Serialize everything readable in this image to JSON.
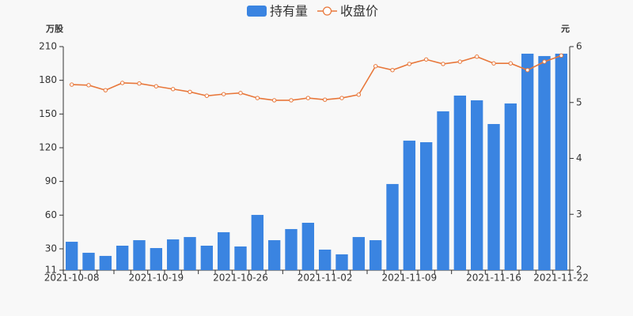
{
  "chart_data": {
    "type": "bar-line",
    "y_unit": "万股",
    "y2_unit": "元",
    "categories": [
      "2021-10-08",
      null,
      null,
      null,
      null,
      "2021-10-19",
      null,
      null,
      null,
      null,
      "2021-10-26",
      null,
      null,
      null,
      null,
      "2021-11-02",
      null,
      null,
      null,
      null,
      "2021-11-09",
      null,
      null,
      null,
      null,
      "2021-11-16",
      null,
      null,
      null,
      "2021-11-22"
    ],
    "series": [
      {
        "name": "持有量",
        "type": "bar",
        "color": "#3a84e1",
        "values": [
          36.3,
          26.5,
          23.7,
          32.8,
          37.7,
          30.7,
          38.4,
          40.5,
          32.8,
          44.8,
          32.1,
          60.2,
          37.7,
          47.6,
          53.2,
          29.3,
          25.1,
          40.5,
          37.7,
          87.7,
          126.3,
          124.9,
          152.4,
          166.4,
          162.2,
          141.1,
          159.4,
          203.7,
          201.6,
          203.7
        ]
      },
      {
        "name": "收盘价",
        "type": "line",
        "axis": "y2",
        "color": "#e8773a",
        "values": [
          5.32,
          5.31,
          5.22,
          5.35,
          5.34,
          5.29,
          5.24,
          5.19,
          5.12,
          5.15,
          5.17,
          5.08,
          5.04,
          5.04,
          5.08,
          5.05,
          5.08,
          5.14,
          5.65,
          5.58,
          5.69,
          5.77,
          5.69,
          5.73,
          5.82,
          5.7,
          5.7,
          5.58,
          5.73,
          5.84
        ]
      }
    ],
    "ylim": [
      11,
      210
    ],
    "yticks": [
      11,
      30,
      60,
      90,
      120,
      150,
      180,
      210
    ],
    "y2lim": [
      2,
      6
    ],
    "y2ticks": [
      2,
      3,
      4,
      5,
      6
    ],
    "grid": false,
    "legend": "top"
  }
}
